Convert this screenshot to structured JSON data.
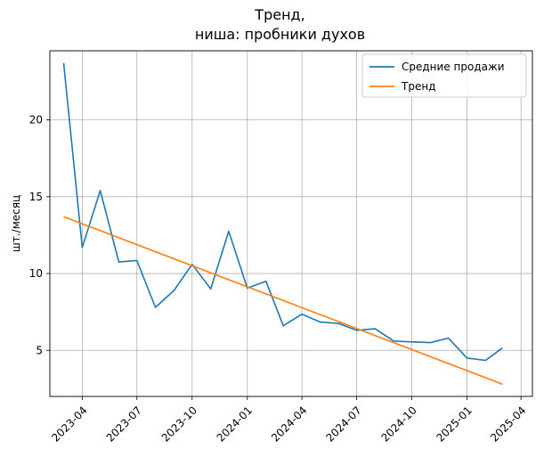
{
  "chart_data": {
    "type": "line",
    "title": [
      "Тренд,",
      "ниша: пробники духов"
    ],
    "xlabel": "",
    "ylabel": "шт./месяц",
    "x_ticks": [
      "2023-04",
      "2023-07",
      "2023-10",
      "2024-01",
      "2024-04",
      "2024-07",
      "2024-10",
      "2025-01",
      "2025-04"
    ],
    "y_ticks": [
      5,
      10,
      15,
      20
    ],
    "ylim": [
      2.0,
      24.5
    ],
    "xlim": [
      "2023-02-06",
      "2025-04-20"
    ],
    "grid": true,
    "legend_position": "top-right",
    "x": [
      "2023-03-01",
      "2023-04-01",
      "2023-05-01",
      "2023-06-01",
      "2023-07-01",
      "2023-08-01",
      "2023-09-01",
      "2023-10-01",
      "2023-11-01",
      "2023-12-01",
      "2024-01-01",
      "2024-02-01",
      "2024-03-01",
      "2024-04-01",
      "2024-05-01",
      "2024-06-01",
      "2024-07-01",
      "2024-08-01",
      "2024-09-01",
      "2024-10-01",
      "2024-11-01",
      "2024-12-01",
      "2025-01-01",
      "2025-02-01",
      "2025-03-01"
    ],
    "series": [
      {
        "name": "Средние продажи",
        "color": "#1f77b4",
        "values": [
          23.7,
          11.7,
          15.4,
          10.75,
          10.85,
          7.8,
          8.9,
          10.6,
          9.0,
          12.75,
          9.05,
          9.5,
          6.6,
          7.35,
          6.85,
          6.75,
          6.3,
          6.4,
          5.6,
          5.55,
          5.5,
          5.8,
          4.5,
          4.35,
          5.15
        ]
      },
      {
        "name": "Тренд",
        "color": "#ff7f0e",
        "values_endpoints": [
          13.7,
          2.8
        ]
      }
    ]
  }
}
